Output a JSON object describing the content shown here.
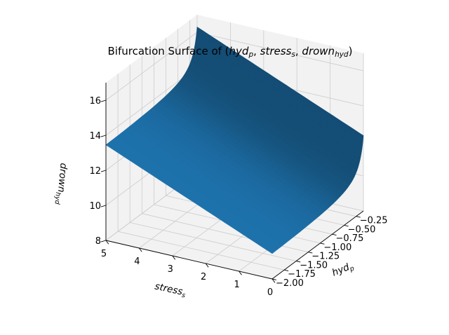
{
  "chart_data": {
    "type": "surface3d",
    "title": "Bifurcation Surface of (hyd_p, stress_s, drown_hyd)",
    "title_text": {
      "pre": "Bifurcation Surface of (",
      "v1": "hyd",
      "s1": "p",
      "v2": "stress",
      "s2": "s",
      "v3": "drown",
      "s3": "hyd",
      "post": ")"
    },
    "x_axis": {
      "label_main": "hyd",
      "label_sub": "p",
      "range": [
        -2.0,
        -0.1
      ],
      "ticks": [
        -2.0,
        -1.75,
        -1.5,
        -1.25,
        -1.0,
        -0.75,
        -0.5,
        -0.25
      ],
      "tick_labels": [
        "−2.00",
        "−1.75",
        "−1.50",
        "−1.25",
        "−1.00",
        "−0.75",
        "−0.50",
        "−0.25"
      ]
    },
    "y_axis": {
      "label_main": "stress",
      "label_sub": "s",
      "range": [
        0,
        5
      ],
      "ticks": [
        0,
        1,
        2,
        3,
        4,
        5
      ],
      "tick_labels": [
        "0",
        "1",
        "2",
        "3",
        "4",
        "5"
      ]
    },
    "z_axis": {
      "label_main": "drown",
      "label_sub": "hyd",
      "range": [
        8,
        17
      ],
      "ticks": [
        8,
        10,
        12,
        14,
        16
      ],
      "tick_labels": [
        "8",
        "10",
        "12",
        "14",
        "16"
      ]
    },
    "surface": {
      "formula": "drown = 9.3 + 0.8*stress - 0.3/hyd",
      "corners": [
        {
          "hyd": -2.0,
          "stress": 5,
          "drown": 13.45
        },
        {
          "hyd": -2.0,
          "stress": 0,
          "drown": 9.45
        },
        {
          "hyd": -0.1,
          "stress": 5,
          "drown": 16.3
        },
        {
          "hyd": -0.1,
          "stress": 0,
          "drown": 12.3
        }
      ]
    },
    "grid": true,
    "colors": {
      "surface": "#1f77b4",
      "pane": "#f2f2f2",
      "grid": "#cccccc"
    }
  }
}
